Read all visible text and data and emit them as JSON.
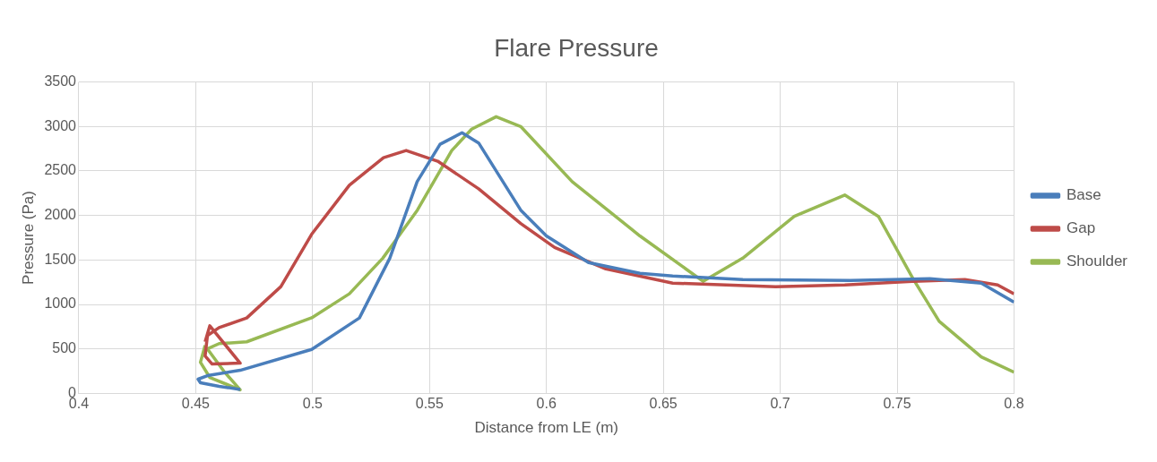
{
  "chart_data": {
    "type": "line",
    "title": "Flare Pressure",
    "xlabel": "Distance from LE (m)",
    "ylabel": "Pressure (Pa)",
    "xlim": [
      0.4,
      0.8
    ],
    "xticks": [
      0.4,
      0.45,
      0.5,
      0.55,
      0.6,
      0.65,
      0.7,
      0.75,
      0.8
    ],
    "ylim": [
      0,
      3500
    ],
    "yticks": [
      0,
      500,
      1000,
      1500,
      2000,
      2500,
      3000,
      3500
    ],
    "grid": true,
    "legend": "right",
    "marker": "none",
    "line_style": "solid",
    "series": [
      {
        "name": "Base",
        "color": "#4a7ebb",
        "x": [
          0.469,
          0.46,
          0.452,
          0.451,
          0.455,
          0.469,
          0.4996,
          0.52,
          0.533,
          0.5447,
          0.5545,
          0.5639,
          0.571,
          0.589,
          0.6,
          0.618,
          0.64,
          0.654,
          0.684,
          0.73,
          0.764,
          0.786,
          0.8
        ],
        "values": [
          45,
          80,
          120,
          160,
          200,
          260,
          495,
          848,
          1520,
          2380,
          2800,
          2930,
          2815,
          2060,
          1770,
          1470,
          1350,
          1320,
          1280,
          1270,
          1290,
          1240,
          1025
        ]
      },
      {
        "name": "Gap",
        "color": "#be4b48",
        "x": [
          0.454,
          0.456,
          0.469,
          0.457,
          0.454,
          0.455,
          0.46,
          0.4718,
          0.4864,
          0.4996,
          0.5157,
          0.5303,
          0.54,
          0.5535,
          0.571,
          0.589,
          0.6035,
          0.6254,
          0.654,
          0.698,
          0.7276,
          0.757,
          0.779,
          0.793,
          0.8
        ],
        "values": [
          580,
          760,
          340,
          330,
          420,
          650,
          740,
          848,
          1200,
          1790,
          2340,
          2650,
          2730,
          2610,
          2300,
          1910,
          1640,
          1400,
          1240,
          1200,
          1220,
          1260,
          1280,
          1220,
          1120
        ]
      },
      {
        "name": "Shoulder",
        "color": "#98b954",
        "x": [
          0.454,
          0.452,
          0.456,
          0.469,
          0.462,
          0.455,
          0.46,
          0.4718,
          0.4996,
          0.5157,
          0.53,
          0.5448,
          0.5595,
          0.568,
          0.5785,
          0.589,
          0.611,
          0.64,
          0.667,
          0.684,
          0.706,
          0.7276,
          0.742,
          0.757,
          0.768,
          0.786,
          0.8
        ],
        "values": [
          540,
          350,
          180,
          40,
          250,
          500,
          560,
          580,
          850,
          1120,
          1520,
          2060,
          2730,
          2970,
          3110,
          3000,
          2380,
          1770,
          1260,
          1520,
          1990,
          2230,
          1990,
          1280,
          810,
          410,
          240
        ]
      }
    ]
  }
}
